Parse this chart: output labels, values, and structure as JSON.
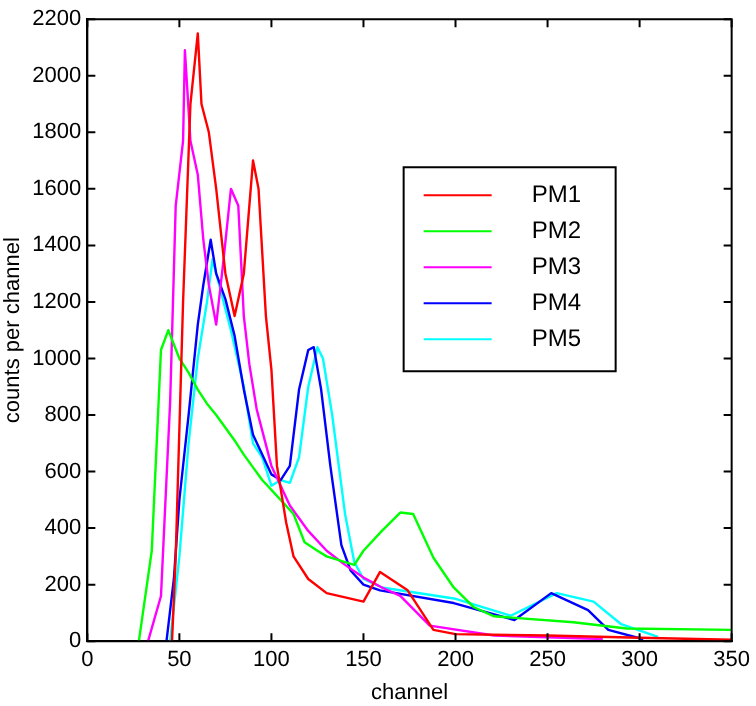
{
  "chart_data": {
    "type": "line",
    "xlabel": "channel",
    "ylabel": "counts per channel",
    "xlim": [
      0,
      350
    ],
    "xticks": [
      0,
      50,
      100,
      150,
      200,
      250,
      300,
      350
    ],
    "ylim": [
      0,
      2200
    ],
    "yticks": [
      0,
      200,
      400,
      600,
      800,
      1000,
      1200,
      1400,
      1600,
      1800,
      2000,
      2200
    ],
    "grid": false,
    "legend": "top right",
    "marker": "none",
    "series": [
      {
        "name": "PM1",
        "color": "#ff0000",
        "x": [
          46,
          48,
          52,
          56,
          60,
          62,
          66,
          70,
          75,
          80,
          85,
          90,
          93,
          97,
          100,
          103,
          108,
          112,
          120,
          130,
          150,
          159,
          174,
          188,
          200,
          250,
          300,
          350
        ],
        "values": [
          0,
          300,
          1200,
          1900,
          2150,
          1900,
          1800,
          1600,
          1300,
          1150,
          1300,
          1700,
          1600,
          1150,
          960,
          620,
          420,
          300,
          220,
          170,
          140,
          245,
          180,
          40,
          25,
          20,
          12,
          5
        ]
      },
      {
        "name": "PM2",
        "color": "#00ff00",
        "x": [
          28,
          35,
          40,
          44,
          50,
          55,
          60,
          65,
          70,
          80,
          85,
          95,
          105,
          112,
          118,
          125,
          130,
          140,
          145,
          150,
          160,
          170,
          177,
          188,
          199,
          210,
          221,
          264,
          293,
          350
        ],
        "values": [
          0,
          320,
          1030,
          1100,
          1000,
          950,
          890,
          840,
          800,
          710,
          660,
          570,
          500,
          450,
          350,
          320,
          300,
          280,
          270,
          320,
          390,
          455,
          450,
          295,
          190,
          120,
          88,
          67,
          45,
          40
        ]
      },
      {
        "name": "PM3",
        "color": "#ff00ff",
        "x": [
          33,
          40,
          45,
          48,
          52,
          53,
          56,
          60,
          63,
          66,
          70,
          74,
          78,
          82,
          85,
          88,
          92,
          100,
          110,
          120,
          130,
          140,
          150,
          160,
          170,
          186,
          221,
          280
        ],
        "values": [
          0,
          160,
          850,
          1540,
          1770,
          2090,
          1770,
          1650,
          1420,
          1260,
          1120,
          1350,
          1600,
          1540,
          1150,
          980,
          820,
          620,
          480,
          390,
          320,
          270,
          225,
          190,
          160,
          55,
          20,
          8
        ]
      },
      {
        "name": "PM4",
        "color": "#0000ff",
        "x": [
          43,
          47,
          50,
          55,
          60,
          63,
          67,
          70,
          75,
          80,
          85,
          90,
          95,
          100,
          105,
          110,
          115,
          120,
          123,
          127,
          132,
          138,
          143,
          150,
          159,
          199,
          232,
          252,
          272,
          283,
          302
        ],
        "values": [
          0,
          220,
          500,
          800,
          1120,
          1260,
          1420,
          1300,
          1210,
          1080,
          890,
          730,
          660,
          590,
          570,
          620,
          890,
          1030,
          1040,
          890,
          620,
          340,
          250,
          200,
          180,
          135,
          75,
          170,
          110,
          40,
          7
        ]
      },
      {
        "name": "PM5",
        "color": "#00ffff",
        "x": [
          45,
          50,
          55,
          60,
          65,
          68,
          72,
          78,
          85,
          90,
          95,
          100,
          105,
          110,
          115,
          120,
          125,
          128,
          133,
          140,
          145,
          150,
          160,
          200,
          230,
          255,
          275,
          290,
          310
        ],
        "values": [
          0,
          300,
          700,
          1000,
          1200,
          1350,
          1250,
          1100,
          900,
          700,
          650,
          550,
          570,
          560,
          650,
          900,
          1040,
          1000,
          800,
          450,
          280,
          220,
          190,
          150,
          90,
          170,
          140,
          60,
          15
        ]
      }
    ]
  }
}
